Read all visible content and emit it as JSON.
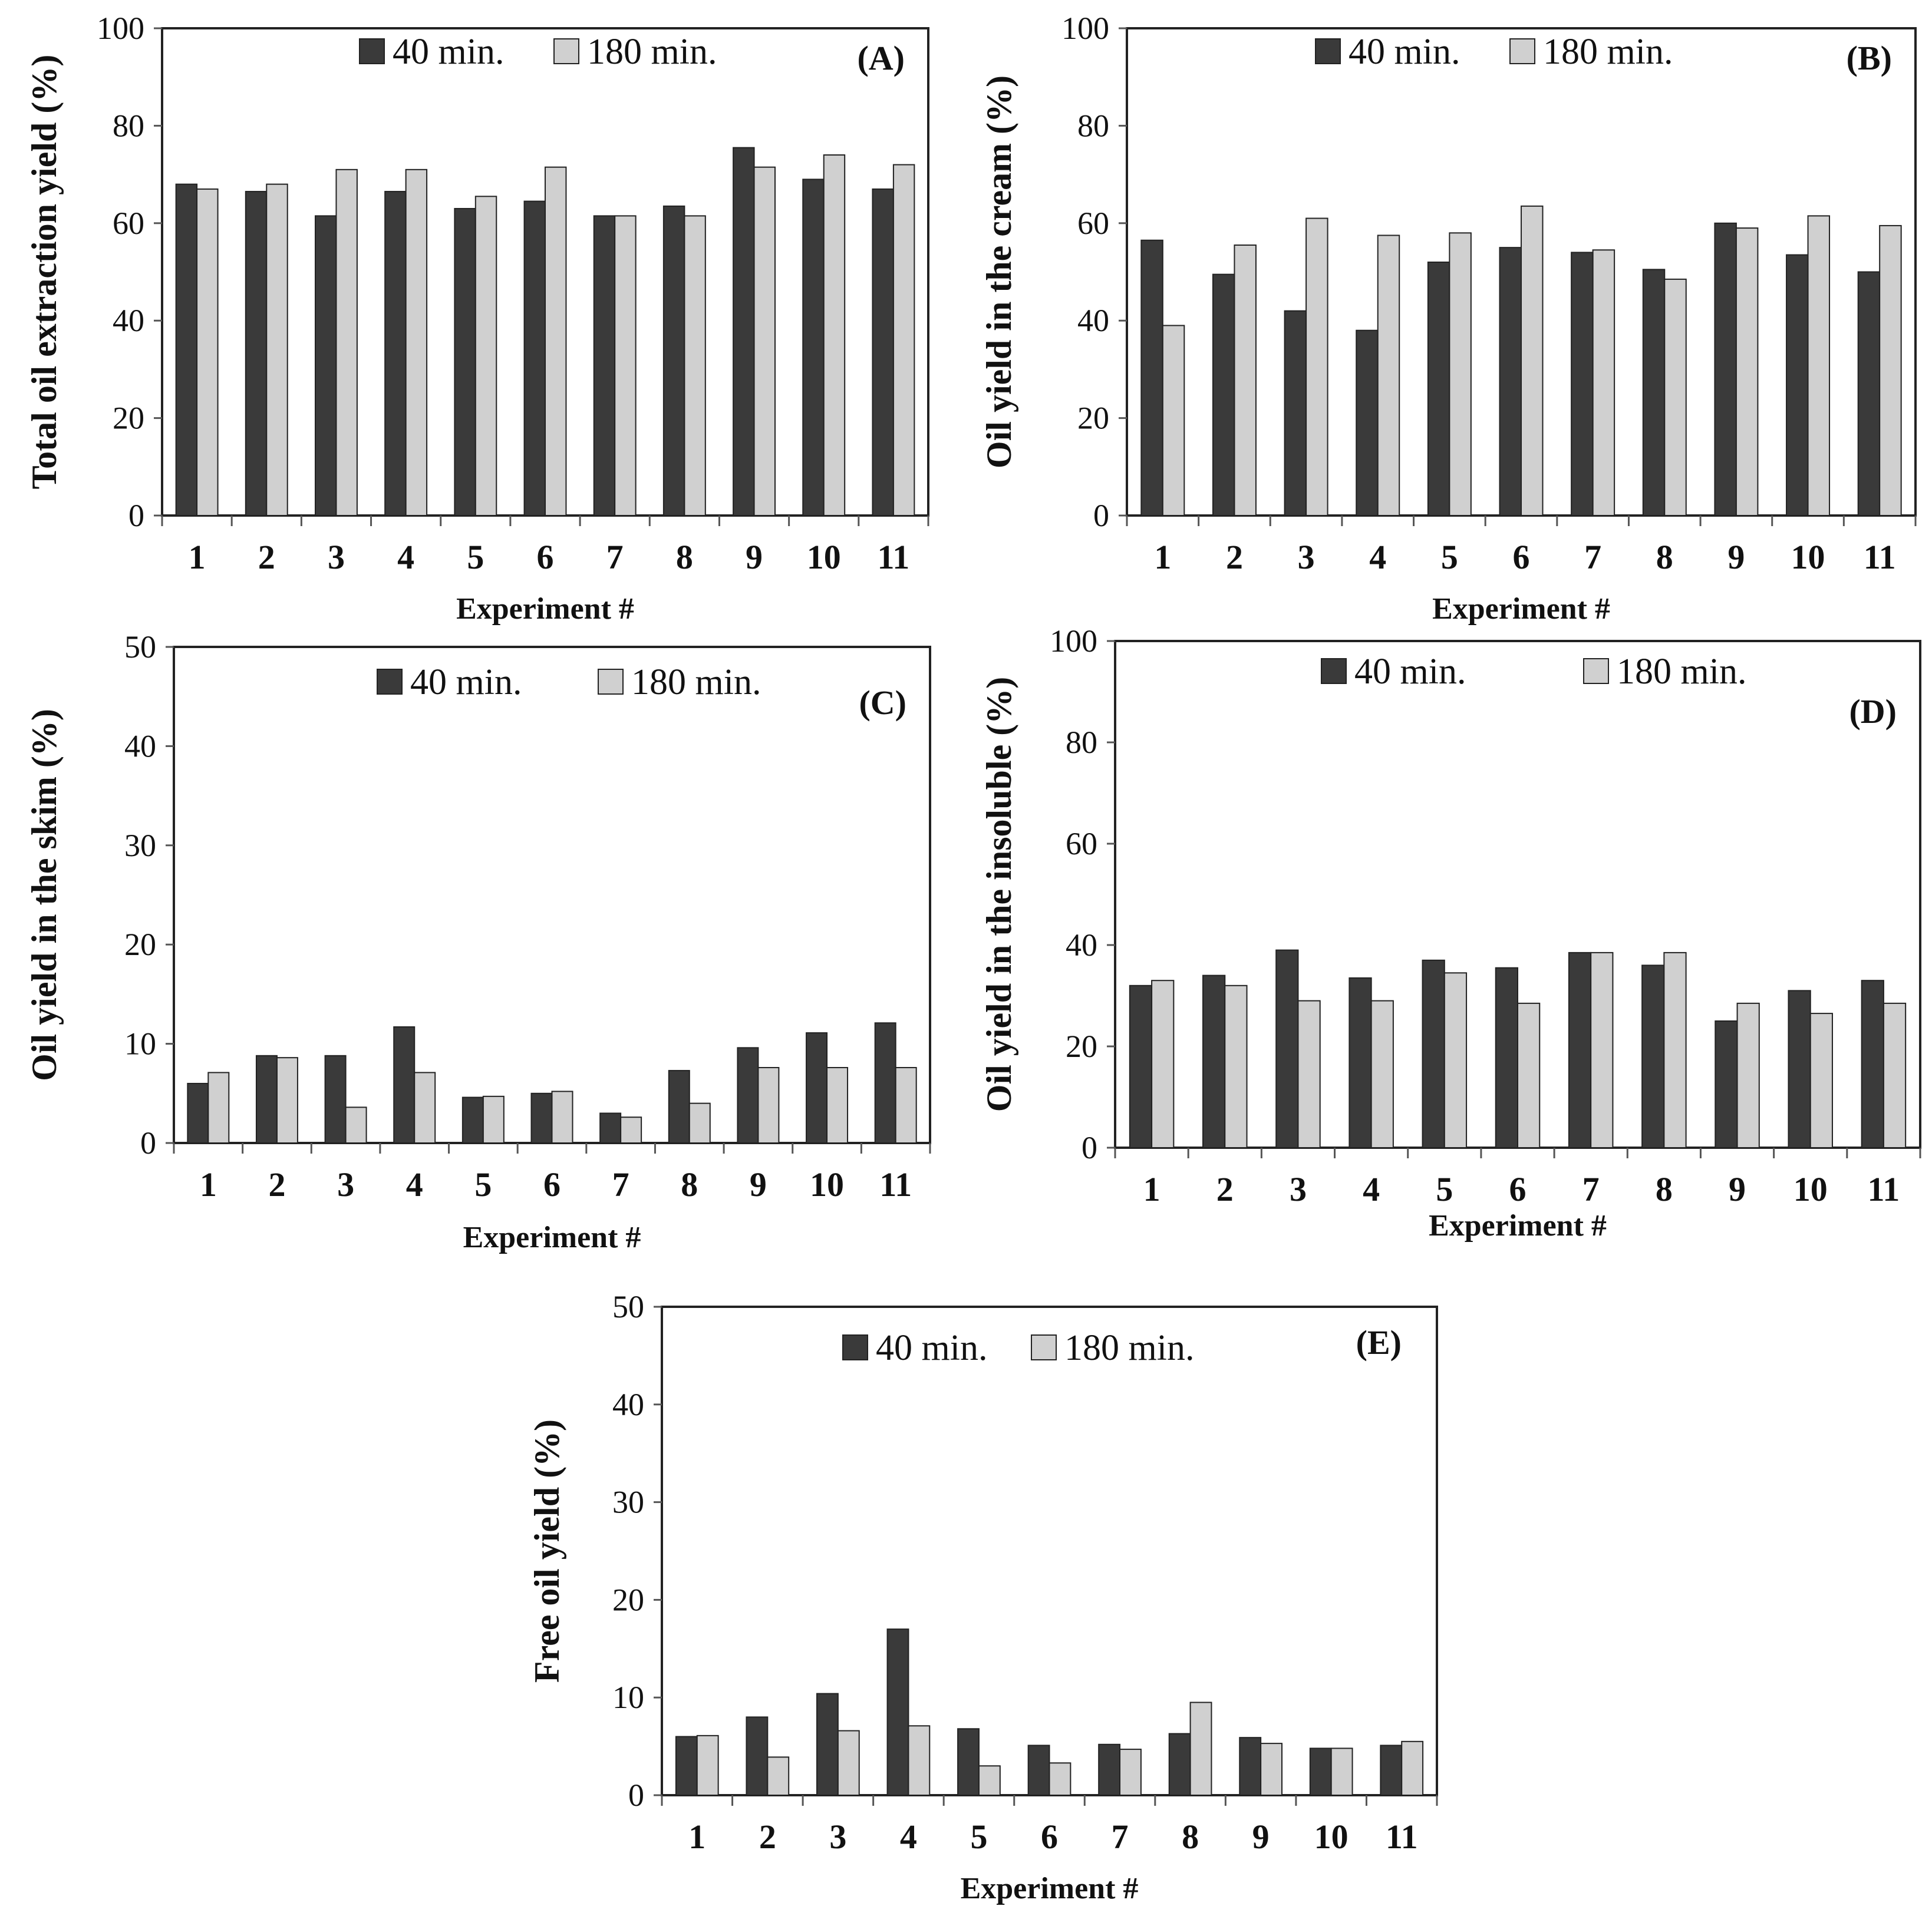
{
  "colors": {
    "s40": "#3a3a3a",
    "s180": "#d0d0d0",
    "axis": "#555555",
    "outline": "#222222"
  },
  "chart_data": [
    {
      "id": "A",
      "type": "bar",
      "panel_label": "(A)",
      "ylabel": "Total oil extraction yield (%)",
      "xlabel": "Experiment #",
      "ylim": [
        0,
        100
      ],
      "yticks": [
        "0",
        "20",
        "40",
        "60",
        "80",
        "100"
      ],
      "ytick_values": [
        0,
        20,
        40,
        60,
        80,
        100
      ],
      "categories": [
        "1",
        "2",
        "3",
        "4",
        "5",
        "6",
        "7",
        "8",
        "9",
        "10",
        "11"
      ],
      "legend": [
        "40 min.",
        "180 min."
      ],
      "series": [
        {
          "name": "40 min.",
          "values": [
            68,
            66.5,
            61.5,
            66.5,
            63,
            64.5,
            61.5,
            63.5,
            75.5,
            69,
            67
          ]
        },
        {
          "name": "180 min.",
          "values": [
            67,
            68,
            71,
            71,
            65.5,
            71.5,
            61.5,
            61.5,
            71.5,
            74,
            72
          ]
        }
      ]
    },
    {
      "id": "B",
      "type": "bar",
      "panel_label": "(B)",
      "ylabel": "Oil yield in the cream (%)",
      "xlabel": "Experiment #",
      "ylim": [
        0,
        100
      ],
      "yticks": [
        "0",
        "20",
        "40",
        "60",
        "80",
        "100"
      ],
      "ytick_values": [
        0,
        20,
        40,
        60,
        80,
        100
      ],
      "categories": [
        "1",
        "2",
        "3",
        "4",
        "5",
        "6",
        "7",
        "8",
        "9",
        "10",
        "11"
      ],
      "legend": [
        "40 min.",
        "180 min."
      ],
      "series": [
        {
          "name": "40 min.",
          "values": [
            56.5,
            49.5,
            42,
            38,
            52,
            55,
            54,
            50.5,
            60,
            53.5,
            50
          ]
        },
        {
          "name": "180 min.",
          "values": [
            39,
            55.5,
            61,
            57.5,
            58,
            63.5,
            54.5,
            48.5,
            59,
            61.5,
            59.5
          ]
        }
      ]
    },
    {
      "id": "C",
      "type": "bar",
      "panel_label": "(C)",
      "ylabel": "Oil yield in the skim (%)",
      "xlabel": "Experiment #",
      "ylim": [
        0,
        50
      ],
      "yticks": [
        "0",
        "10",
        "20",
        "30",
        "40",
        "50"
      ],
      "ytick_values": [
        0,
        10,
        20,
        30,
        40,
        50
      ],
      "categories": [
        "1",
        "2",
        "3",
        "4",
        "5",
        "6",
        "7",
        "8",
        "9",
        "10",
        "11"
      ],
      "legend": [
        "40 min.",
        "180 min."
      ],
      "series": [
        {
          "name": "40 min.",
          "values": [
            6,
            8.8,
            8.8,
            11.7,
            4.6,
            5,
            3,
            7.3,
            9.6,
            11.1,
            12.1
          ]
        },
        {
          "name": "180 min.",
          "values": [
            7.1,
            8.6,
            3.6,
            7.1,
            4.7,
            5.2,
            2.6,
            4,
            7.6,
            7.6,
            7.6
          ]
        }
      ]
    },
    {
      "id": "D",
      "type": "bar",
      "panel_label": "(D)",
      "ylabel": "Oil yield in the insoluble  (%)",
      "xlabel": "Experiment #",
      "ylim": [
        0,
        100
      ],
      "yticks": [
        "0",
        "20",
        "40",
        "60",
        "80",
        "100"
      ],
      "ytick_values": [
        0,
        20,
        40,
        60,
        80,
        100
      ],
      "categories": [
        "1",
        "2",
        "3",
        "4",
        "5",
        "6",
        "7",
        "8",
        "9",
        "10",
        "11"
      ],
      "legend": [
        "40 min.",
        "180 min."
      ],
      "series": [
        {
          "name": "40 min.",
          "values": [
            32,
            34,
            39,
            33.5,
            37,
            35.5,
            38.5,
            36,
            25,
            31,
            33
          ]
        },
        {
          "name": "180 min.",
          "values": [
            33,
            32,
            29,
            29,
            34.5,
            28.5,
            38.5,
            38.5,
            28.5,
            26.5,
            28.5
          ]
        }
      ]
    },
    {
      "id": "E",
      "type": "bar",
      "panel_label": "(E)",
      "ylabel": "Free oil yield (%)",
      "xlabel": "Experiment #",
      "ylim": [
        0,
        50
      ],
      "yticks": [
        "0",
        "10",
        "20",
        "30",
        "40",
        "50"
      ],
      "ytick_values": [
        0,
        10,
        20,
        30,
        40,
        50
      ],
      "categories": [
        "1",
        "2",
        "3",
        "4",
        "5",
        "6",
        "7",
        "8",
        "9",
        "10",
        "11"
      ],
      "legend": [
        "40 min.",
        "180 min."
      ],
      "series": [
        {
          "name": "40 min.",
          "values": [
            6,
            8,
            10.4,
            17,
            6.8,
            5.1,
            5.2,
            6.3,
            5.9,
            4.8,
            5.1
          ]
        },
        {
          "name": "180 min.",
          "values": [
            6.1,
            3.9,
            6.6,
            7.1,
            3,
            3.3,
            4.7,
            9.5,
            5.3,
            4.8,
            5.5
          ]
        }
      ]
    }
  ]
}
